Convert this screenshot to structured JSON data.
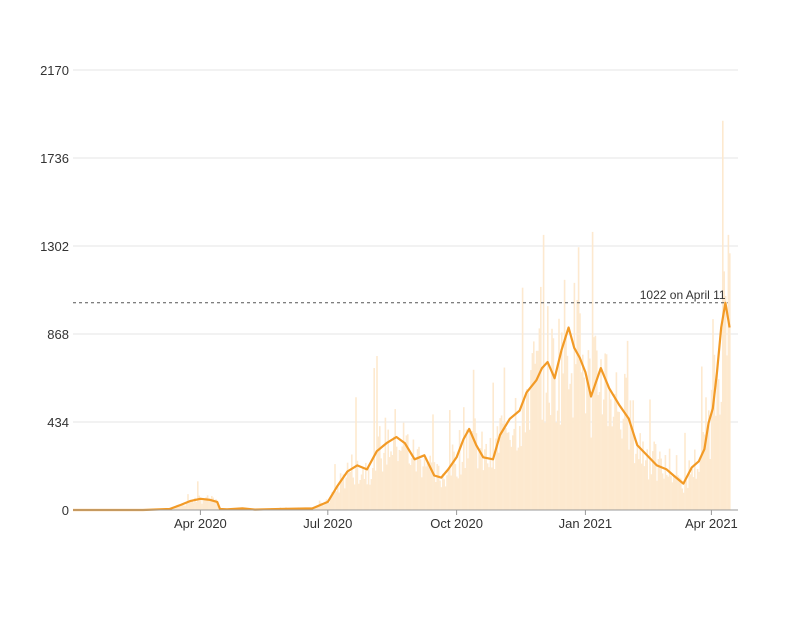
{
  "chart_data": {
    "type": "bar",
    "title": "",
    "xlabel": "",
    "ylabel": "",
    "x_range": [
      "2020-01-01",
      "2021-04-20"
    ],
    "ylim": [
      0,
      2170
    ],
    "yticks": [
      0,
      434,
      868,
      1302,
      1736,
      2170
    ],
    "xticks": [
      {
        "date": "2020-04-01",
        "label": "Apr 2020"
      },
      {
        "date": "2020-07-01",
        "label": "Jul 2020"
      },
      {
        "date": "2020-10-01",
        "label": "Oct 2020"
      },
      {
        "date": "2021-01-01",
        "label": "Jan 2021"
      },
      {
        "date": "2021-04-01",
        "label": "Apr 2021"
      }
    ],
    "grid": "horizontal",
    "series": [
      {
        "kind": "daily-bars",
        "color": "#fde9cf"
      },
      {
        "kind": "rolling-average-line",
        "color": "#f29a26",
        "points": [
          [
            "2020-01-01",
            0
          ],
          [
            "2020-02-20",
            0
          ],
          [
            "2020-03-10",
            5
          ],
          [
            "2020-03-18",
            25
          ],
          [
            "2020-03-25",
            45
          ],
          [
            "2020-04-01",
            55
          ],
          [
            "2020-04-08",
            50
          ],
          [
            "2020-04-13",
            40
          ],
          [
            "2020-04-15",
            5
          ],
          [
            "2020-04-20",
            3
          ],
          [
            "2020-05-01",
            8
          ],
          [
            "2020-05-10",
            2
          ],
          [
            "2020-06-01",
            6
          ],
          [
            "2020-06-20",
            8
          ],
          [
            "2020-07-01",
            40
          ],
          [
            "2020-07-08",
            120
          ],
          [
            "2020-07-15",
            190
          ],
          [
            "2020-07-22",
            220
          ],
          [
            "2020-07-29",
            200
          ],
          [
            "2020-08-05",
            290
          ],
          [
            "2020-08-12",
            330
          ],
          [
            "2020-08-19",
            360
          ],
          [
            "2020-08-25",
            330
          ],
          [
            "2020-09-01",
            250
          ],
          [
            "2020-09-08",
            270
          ],
          [
            "2020-09-15",
            170
          ],
          [
            "2020-09-20",
            160
          ],
          [
            "2020-09-25",
            200
          ],
          [
            "2020-10-01",
            260
          ],
          [
            "2020-10-06",
            350
          ],
          [
            "2020-10-10",
            400
          ],
          [
            "2020-10-15",
            320
          ],
          [
            "2020-10-20",
            260
          ],
          [
            "2020-10-27",
            250
          ],
          [
            "2020-11-01",
            370
          ],
          [
            "2020-11-08",
            450
          ],
          [
            "2020-11-15",
            490
          ],
          [
            "2020-11-20",
            580
          ],
          [
            "2020-11-27",
            640
          ],
          [
            "2020-12-01",
            700
          ],
          [
            "2020-12-05",
            730
          ],
          [
            "2020-12-10",
            650
          ],
          [
            "2020-12-15",
            790
          ],
          [
            "2020-12-20",
            900
          ],
          [
            "2020-12-24",
            800
          ],
          [
            "2020-12-28",
            750
          ],
          [
            "2021-01-01",
            680
          ],
          [
            "2021-01-05",
            560
          ],
          [
            "2021-01-08",
            620
          ],
          [
            "2021-01-12",
            700
          ],
          [
            "2021-01-18",
            600
          ],
          [
            "2021-01-25",
            520
          ],
          [
            "2021-02-01",
            450
          ],
          [
            "2021-02-07",
            320
          ],
          [
            "2021-02-14",
            270
          ],
          [
            "2021-02-21",
            220
          ],
          [
            "2021-02-28",
            200
          ],
          [
            "2021-03-05",
            170
          ],
          [
            "2021-03-12",
            130
          ],
          [
            "2021-03-18",
            210
          ],
          [
            "2021-03-23",
            240
          ],
          [
            "2021-03-27",
            300
          ],
          [
            "2021-03-30",
            430
          ],
          [
            "2021-04-02",
            500
          ],
          [
            "2021-04-05",
            680
          ],
          [
            "2021-04-08",
            900
          ],
          [
            "2021-04-11",
            1022
          ],
          [
            "2021-04-14",
            900
          ]
        ]
      }
    ],
    "highlight_range": [
      "2021-04-01",
      "2021-04-14"
    ],
    "highlight_color": "#fbe3dc",
    "reference_line": {
      "value": 1022,
      "label": "1022 on April 11"
    }
  }
}
